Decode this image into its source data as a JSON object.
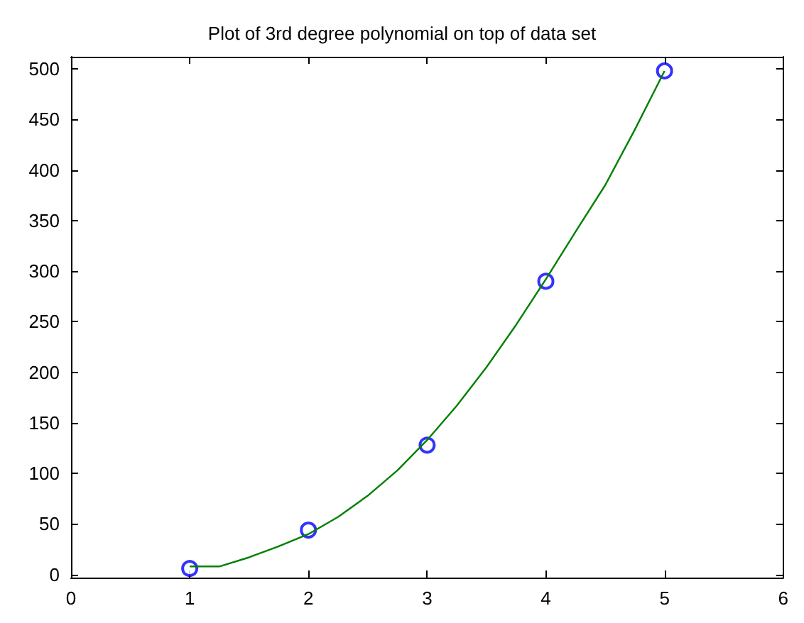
{
  "chart_data": {
    "type": "scatter",
    "title": "Plot of 3rd degree polynomial on top of data set",
    "xlim": [
      0,
      6
    ],
    "xticks": [
      0,
      1,
      2,
      3,
      4,
      5,
      6
    ],
    "ylim": [
      -3,
      512
    ],
    "yticks": [
      0,
      50,
      100,
      150,
      200,
      250,
      300,
      350,
      400,
      450,
      500
    ],
    "grid": false,
    "series": [
      {
        "marker": "circle",
        "color": "#0000ff",
        "x": [
          1,
          2,
          3,
          4,
          5
        ],
        "values": [
          6,
          44,
          128,
          290,
          498
        ]
      },
      {
        "type": "line",
        "marker": "none",
        "color": "#008000",
        "x": [
          1,
          1.25,
          1.5,
          1.75,
          2,
          2.25,
          2.5,
          2.75,
          3,
          3.25,
          3.5,
          3.75,
          4,
          4.25,
          4.5,
          4.75,
          5
        ],
        "values": [
          8,
          8,
          17,
          28,
          40,
          57,
          78,
          103,
          133,
          167,
          205,
          247,
          292,
          339,
          385,
          440,
          498
        ]
      }
    ]
  }
}
